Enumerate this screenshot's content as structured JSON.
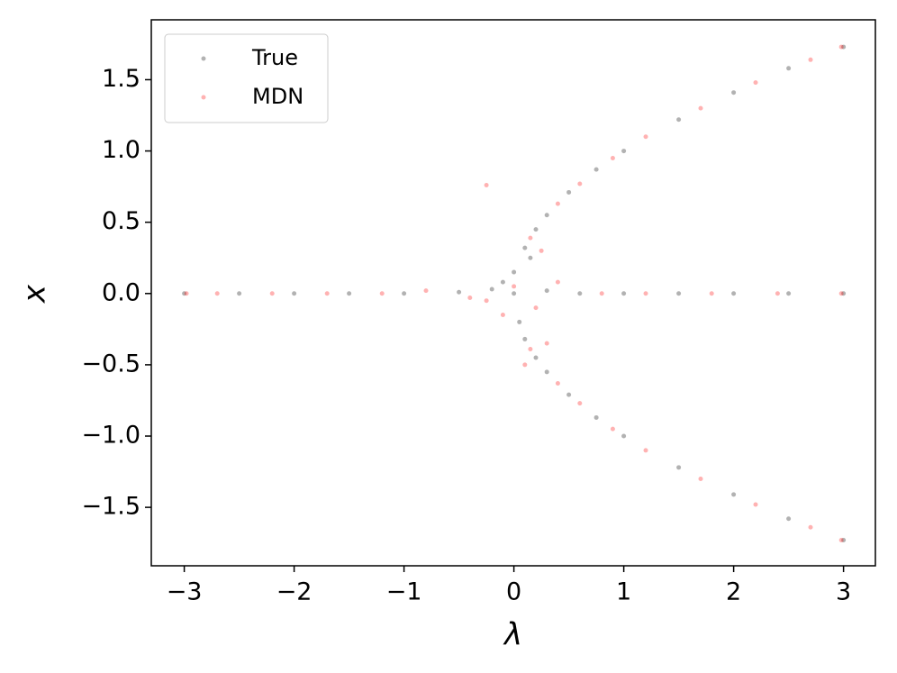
{
  "chart_data": {
    "type": "scatter",
    "xlabel": "λ",
    "ylabel": "x",
    "xlim": [
      -3.3,
      3.29
    ],
    "ylim": [
      -1.91,
      1.92
    ],
    "xticks": [
      {
        "value": -3,
        "label": "−3"
      },
      {
        "value": -2,
        "label": "−2"
      },
      {
        "value": -1,
        "label": "−1"
      },
      0,
      1,
      2,
      3
    ],
    "yticks": [
      {
        "value": -1.5,
        "label": "−1.5"
      },
      {
        "value": -1.0,
        "label": "−1.0"
      },
      {
        "value": -0.5,
        "label": "−0.5"
      },
      {
        "value": 0.0,
        "label": "0.0"
      },
      0.5,
      {
        "value": 1.0,
        "label": "1.0"
      },
      1.5
    ],
    "legend": "upper left",
    "series": [
      {
        "name": "True",
        "color": "#000000",
        "x": [
          -3,
          -2.5,
          -2,
          -1.5,
          -1,
          -0.5,
          -0.2,
          0,
          0.3,
          0.6,
          1,
          1.5,
          2,
          2.5,
          3,
          0.1,
          0.2,
          0.3,
          0.5,
          0.75,
          1,
          1.5,
          2,
          2.5,
          3,
          0.1,
          0.2,
          0.3,
          0.5,
          0.75,
          1,
          1.5,
          2,
          2.5,
          3,
          0,
          0.05,
          -0.1,
          0.15
        ],
        "values": [
          0,
          0,
          0,
          0,
          0,
          0.01,
          0.03,
          0,
          0.02,
          0,
          0,
          0,
          0,
          0,
          0,
          0.32,
          0.45,
          0.55,
          0.71,
          0.87,
          1,
          1.22,
          1.41,
          1.58,
          1.73,
          -0.32,
          -0.45,
          -0.55,
          -0.71,
          -0.87,
          -1,
          -1.22,
          -1.41,
          -1.58,
          -1.73,
          0.15,
          -0.2,
          0.08,
          0.25
        ]
      },
      {
        "name": "MDN",
        "color": "#ff0000",
        "x": [
          -2.98,
          -2.7,
          -2.2,
          -1.7,
          -1.2,
          -0.8,
          -0.4,
          -0.25,
          0,
          0.2,
          0.4,
          0.8,
          1.2,
          1.8,
          2.4,
          2.98,
          0.15,
          0.4,
          0.6,
          0.9,
          1.2,
          1.7,
          2.2,
          2.7,
          2.98,
          0.15,
          0.4,
          0.6,
          0.9,
          1.2,
          1.7,
          2.2,
          2.7,
          2.98,
          -0.25,
          0.1,
          0.25,
          -0.1,
          0.3
        ],
        "values": [
          0,
          0,
          0,
          0,
          0,
          0.02,
          -0.03,
          0.76,
          0.05,
          -0.1,
          0.08,
          0,
          0,
          0,
          0,
          0,
          0.39,
          0.63,
          0.77,
          0.95,
          1.1,
          1.3,
          1.48,
          1.64,
          1.73,
          -0.39,
          -0.63,
          -0.77,
          -0.95,
          -1.1,
          -1.3,
          -1.48,
          -1.64,
          -1.73,
          -0.05,
          -0.5,
          0.3,
          -0.15,
          -0.35
        ]
      }
    ]
  }
}
